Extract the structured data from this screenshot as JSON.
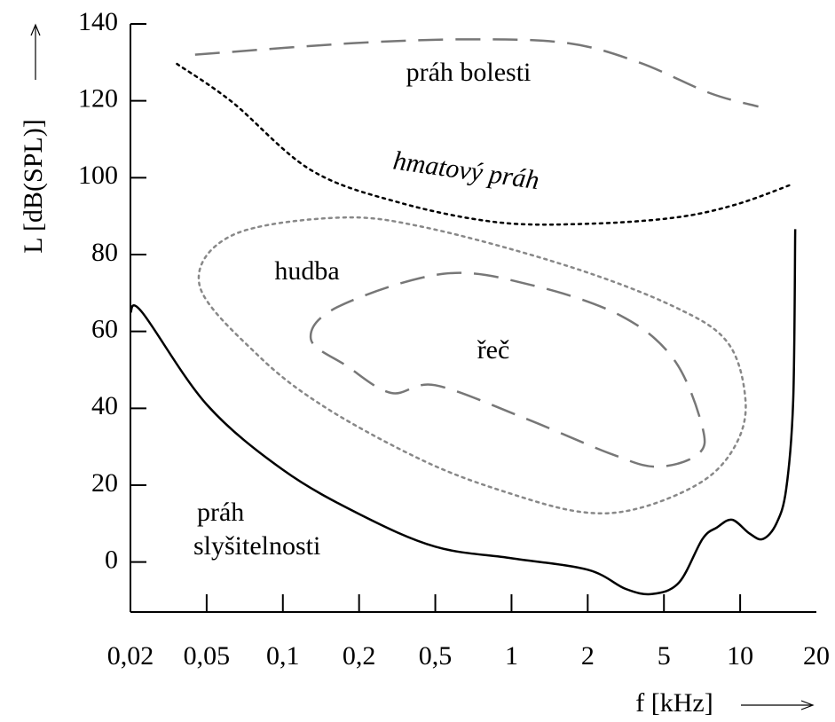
{
  "chart_data": {
    "type": "line",
    "x_label": "f [kHz]",
    "y_label": "L [dB(SPL)]",
    "xlim": [
      0.02,
      20
    ],
    "ylim": [
      -13,
      140
    ],
    "xticks": [
      {
        "value": 0.02,
        "label": "0,02"
      },
      {
        "value": 0.05,
        "label": "0,05"
      },
      {
        "value": 0.1,
        "label": "0,1"
      },
      {
        "value": 0.2,
        "label": "0,2"
      },
      {
        "value": 0.5,
        "label": "0,5"
      },
      1,
      2,
      5,
      10,
      20
    ],
    "yticks": [
      0,
      20,
      40,
      60,
      80,
      100,
      120,
      140
    ],
    "grid": false,
    "series": [
      {
        "color": "#000000",
        "dash": "solid",
        "closed": false,
        "x": [
          0.02,
          0.023,
          0.05,
          0.1,
          0.2,
          0.5,
          1,
          2,
          3.16,
          4.36,
          5.74,
          7.1,
          8.1,
          9.3,
          10.9,
          12.3,
          13.9,
          15.2,
          16.2,
          16.5
        ],
        "values": [
          65,
          65,
          41,
          24,
          12.5,
          4,
          1,
          -2,
          -7,
          -8.3,
          -5.3,
          6,
          9,
          11,
          7.4,
          6,
          10,
          19,
          42,
          86.6
        ]
      },
      {
        "color": "#777777",
        "dash": "dashed",
        "closed": false,
        "x": [
          0.0435,
          0.19,
          0.69,
          1.67,
          3.7,
          7.6,
          11.8
        ],
        "values": [
          132,
          135,
          136,
          135,
          130,
          122,
          118.5
        ]
      },
      {
        "color": "#000000",
        "dash": "dotted",
        "closed": false,
        "x": [
          0.035,
          0.063,
          0.129,
          0.326,
          0.88,
          1.97,
          5.5,
          9.6,
          16.2
        ],
        "values": [
          129.6,
          119.7,
          102,
          93.5,
          88.4,
          88,
          89.6,
          93,
          98.4
        ]
      },
      {
        "color": "#888888",
        "dash": "dotted",
        "closed": true,
        "x": [
          0.0459,
          0.063,
          0.165,
          0.449,
          1.67,
          5.5,
          8.95,
          10.5,
          9.6,
          7.1,
          3.7,
          1.9,
          0.97,
          0.449,
          0.149,
          0.08
        ],
        "values": [
          72,
          85,
          89.6,
          87,
          77,
          66.4,
          57,
          42,
          30.5,
          21,
          14,
          13,
          18,
          26,
          40,
          53.7
        ]
      },
      {
        "color": "#777777",
        "dash": "dashed",
        "closed": true,
        "x": [
          0.129,
          0.165,
          0.54,
          1.21,
          3.0,
          5.5,
          7.1,
          6.8,
          4.6,
          2.69,
          1.12,
          0.5,
          0.294,
          0.179
        ],
        "values": [
          58,
          66.4,
          75,
          72,
          64,
          52.5,
          35,
          28,
          24.8,
          28,
          37.5,
          46,
          44,
          51
        ]
      }
    ],
    "annotations": [
      "práh bolesti",
      "hmatový práh",
      "hudba",
      "řeč",
      "práh",
      "slyšitelnosti"
    ]
  }
}
